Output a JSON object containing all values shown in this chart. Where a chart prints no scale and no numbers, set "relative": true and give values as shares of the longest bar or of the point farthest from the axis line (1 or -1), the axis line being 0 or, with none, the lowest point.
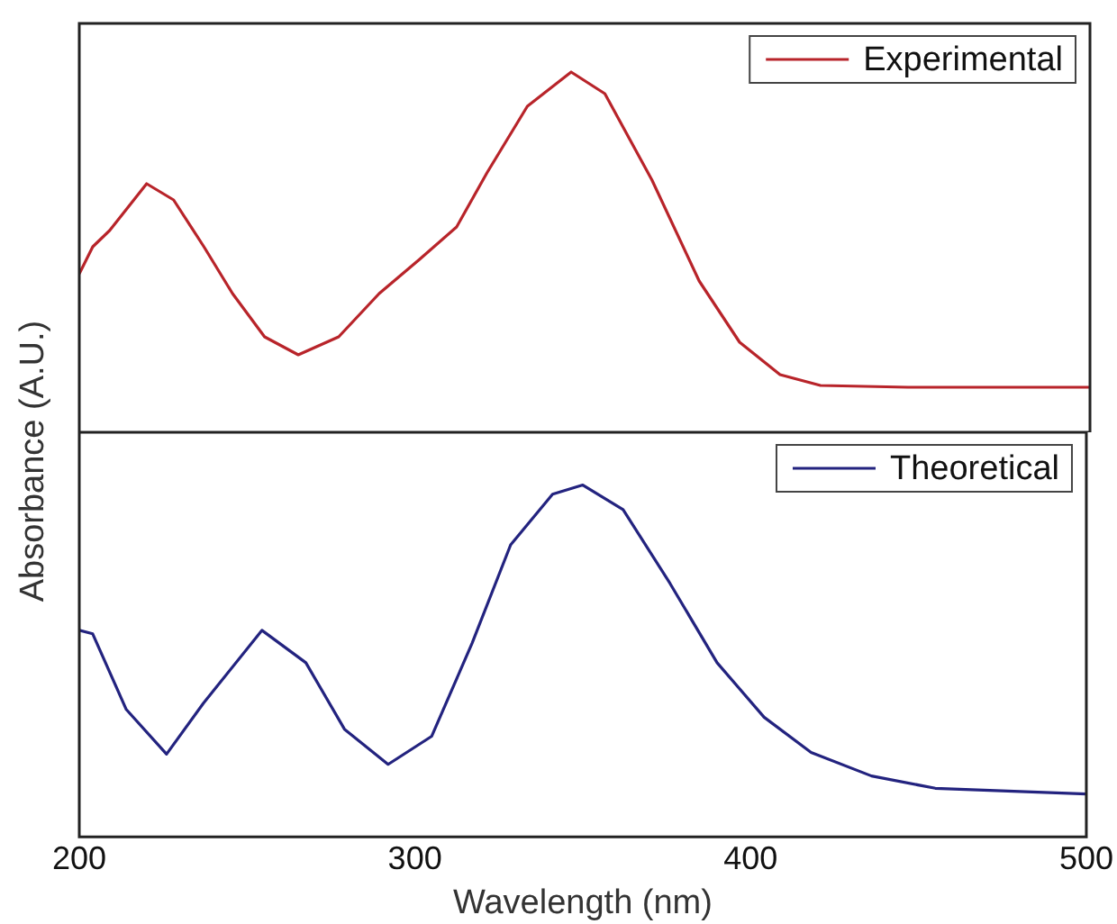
{
  "chart_data": [
    {
      "type": "line",
      "ylabel": "Absorbance (A.U.)",
      "relative": true,
      "xlim": [
        200,
        500
      ],
      "xticks": [
        200,
        300,
        400,
        500
      ],
      "tick_labels": false,
      "legend": "top right",
      "marker": "none",
      "grid": false,
      "series": [
        {
          "name": "Experimental",
          "color": "#b8242a",
          "x": [
            200,
            204,
            209,
            220,
            228,
            237,
            245.5,
            255,
            265,
            277,
            289,
            301,
            312,
            321,
            333,
            346,
            356,
            370,
            384,
            396,
            408,
            420,
            446,
            500
          ],
          "values": [
            0.44,
            0.515,
            0.56,
            0.69,
            0.645,
            0.515,
            0.385,
            0.265,
            0.215,
            0.265,
            0.385,
            0.48,
            0.57,
            0.72,
            0.905,
            1,
            0.94,
            0.7,
            0.42,
            0.25,
            0.16,
            0.13,
            0.125,
            0.125
          ]
        }
      ]
    },
    {
      "type": "line",
      "xlabel": "Wavelength (nm)",
      "relative": true,
      "xlim": [
        200,
        500
      ],
      "xticks": [
        200,
        300,
        400,
        500
      ],
      "tick_labels": "x",
      "legend": "top right",
      "marker": "none",
      "grid": false,
      "series": [
        {
          "name": "Theoretical",
          "color": "#23237f",
          "x": [
            200,
            204,
            214,
            226,
            237,
            254.4,
            267.5,
            279,
            292,
            305,
            317,
            328.5,
            341,
            350,
            362,
            376,
            390,
            404,
            418,
            436,
            455,
            500
          ],
          "values": [
            0.587,
            0.577,
            0.362,
            0.235,
            0.38,
            0.587,
            0.495,
            0.306,
            0.206,
            0.286,
            0.55,
            0.83,
            0.974,
            1,
            0.93,
            0.72,
            0.495,
            0.34,
            0.24,
            0.173,
            0.138,
            0.122
          ]
        }
      ]
    }
  ]
}
